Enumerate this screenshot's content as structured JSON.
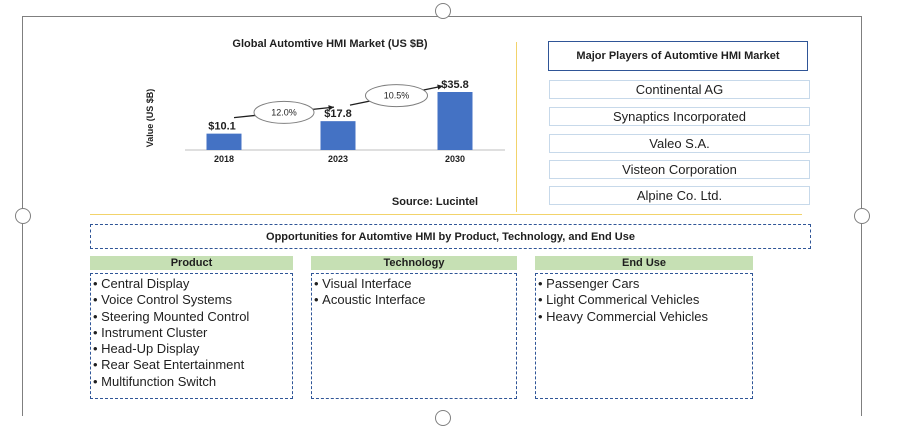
{
  "chart_data": {
    "type": "bar",
    "title": "Global Automtive HMI Market (US $B)",
    "ylabel": "Value (US $B)",
    "categories": [
      "2018",
      "2023",
      "2030"
    ],
    "values": [
      10.1,
      17.8,
      35.8
    ],
    "value_labels": [
      "$10.1",
      "$17.8",
      "$35.8"
    ],
    "ylim": [
      0,
      40
    ],
    "grid": false,
    "bar_color": "#4472c4",
    "growth_annotations": [
      {
        "label": "12.0%",
        "from": "2018",
        "to": "2023"
      },
      {
        "label": "10.5%",
        "from": "2023",
        "to": "2030"
      }
    ],
    "source": "Source: Lucintel"
  },
  "players": {
    "title": "Major Players of Automtive HMI Market",
    "items": [
      "Continental AG",
      "Synaptics Incorporated",
      "Valeo S.A.",
      "Visteon Corporation",
      "Alpine Co. Ltd."
    ]
  },
  "opportunities": {
    "title": "Opportunities for Automtive HMI by Product, Technology, and End Use",
    "columns": [
      {
        "header": "Product",
        "items": [
          "Central Display",
          "Voice Control Systems",
          "Steering Mounted Control",
          "Instrument Cluster",
          "Head-Up Display",
          "Rear Seat Entertainment",
          "Multifunction Switch"
        ]
      },
      {
        "header": "Technology",
        "items": [
          "Visual Interface",
          "Acoustic Interface"
        ]
      },
      {
        "header": "End Use",
        "items": [
          "Passenger Cars",
          "Light Commerical Vehicles",
          "Heavy Commercial Vehicles"
        ]
      }
    ]
  },
  "colors": {
    "header_green": "#c6e0b4",
    "border_blue": "#2f5597",
    "separator": "#f2d36b"
  }
}
